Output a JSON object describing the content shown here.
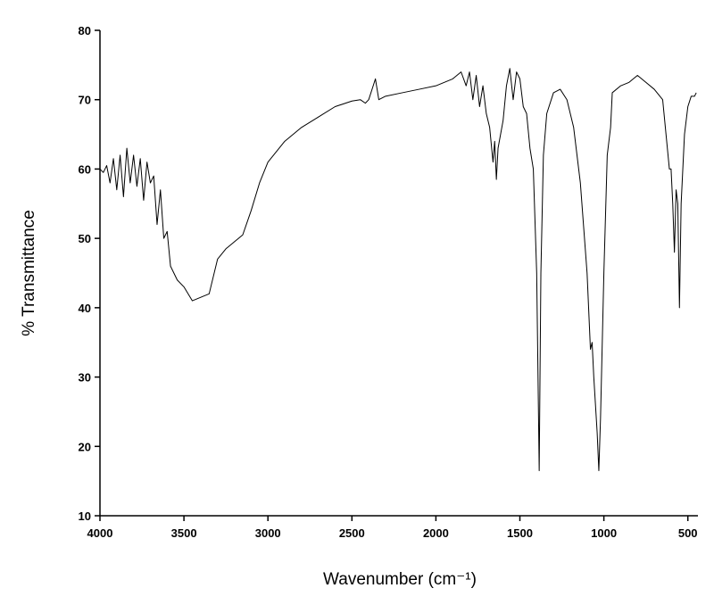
{
  "chart_data": {
    "type": "line",
    "x_label": "Wavenumber (cm⁻¹)",
    "y_label": "% Transmittance",
    "color": "#000000",
    "xlim": [
      4000,
      440
    ],
    "ylim": [
      10,
      80
    ],
    "xticks": [
      4000,
      3500,
      3000,
      2500,
      2000,
      1500,
      1000,
      500
    ],
    "yticks": [
      10,
      20,
      30,
      40,
      50,
      60,
      70,
      80
    ],
    "x": [
      4000,
      3980,
      3960,
      3940,
      3920,
      3900,
      3880,
      3860,
      3840,
      3820,
      3800,
      3780,
      3760,
      3740,
      3720,
      3700,
      3680,
      3660,
      3640,
      3620,
      3600,
      3580,
      3560,
      3540,
      3500,
      3450,
      3400,
      3350,
      3300,
      3250,
      3200,
      3150,
      3100,
      3050,
      3000,
      2900,
      2800,
      2700,
      2600,
      2500,
      2450,
      2420,
      2400,
      2360,
      2340,
      2300,
      2200,
      2100,
      2000,
      1900,
      1850,
      1820,
      1800,
      1780,
      1760,
      1740,
      1720,
      1700,
      1680,
      1660,
      1650,
      1640,
      1630,
      1600,
      1580,
      1560,
      1540,
      1520,
      1500,
      1480,
      1460,
      1440,
      1420,
      1400,
      1385,
      1375,
      1360,
      1340,
      1300,
      1260,
      1220,
      1180,
      1140,
      1100,
      1080,
      1070,
      1060,
      1040,
      1030,
      1020,
      1000,
      980,
      960,
      950,
      900,
      850,
      800,
      750,
      700,
      650,
      630,
      610,
      600,
      590,
      580,
      570,
      560,
      550,
      540,
      520,
      500,
      480,
      460,
      450
    ],
    "values": [
      60,
      59.5,
      60.5,
      58,
      61.5,
      57,
      62,
      56,
      63,
      58,
      62,
      57.5,
      61.5,
      55.5,
      61,
      58,
      59,
      52,
      57,
      50,
      51,
      46,
      45,
      44,
      43,
      41,
      41.5,
      42,
      47,
      48.5,
      49.5,
      50.5,
      54,
      58,
      61,
      64,
      66,
      67.5,
      69,
      69.8,
      70,
      69.5,
      70,
      73,
      70,
      70.5,
      71,
      71.5,
      72,
      73,
      74,
      72,
      74,
      70,
      73.5,
      69,
      72,
      68,
      66,
      61,
      64,
      58.5,
      63,
      67,
      72,
      74.5,
      70,
      74,
      73,
      69,
      68,
      63,
      60,
      45,
      16.5,
      45,
      62,
      68,
      71,
      71.5,
      70,
      66,
      58,
      45,
      34,
      35,
      30,
      22,
      16.5,
      24,
      45,
      62,
      66,
      71,
      72,
      72.5,
      73.5,
      72.5,
      71.5,
      70,
      65,
      60,
      60,
      55,
      48,
      57,
      55,
      40,
      55,
      65,
      69,
      70.5,
      70.5,
      71
    ]
  }
}
